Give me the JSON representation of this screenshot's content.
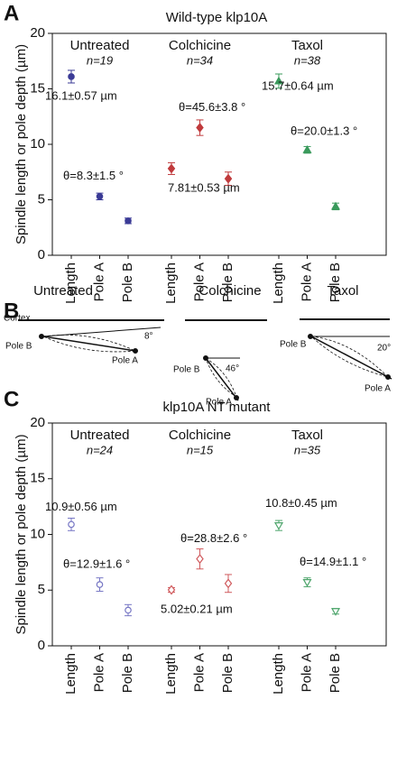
{
  "panels": [
    "A",
    "B",
    "C"
  ],
  "chart_data": [
    {
      "type": "errorbar",
      "title": "Wild-type klp10A",
      "ylabel": "Spindle length or pole depth (µm)",
      "categories": [
        "Length",
        "Pole A",
        "Pole B"
      ],
      "ylim": [
        0,
        20
      ],
      "yticks": [
        0,
        5,
        10,
        15,
        20
      ],
      "series": [
        {
          "name": "Untreated",
          "n": "n=19",
          "color": "#3b3b96",
          "marker": "circle",
          "filled": true,
          "values": [
            16.1,
            5.3,
            3.1
          ],
          "errors": [
            0.57,
            0.3,
            0.25
          ],
          "length_label": "16.1±0.57 µm",
          "angle_label": "θ=8.3±1.5 °"
        },
        {
          "name": "Colchicine",
          "n": "n=34",
          "color": "#c03a3c",
          "marker": "diamond",
          "filled": true,
          "values": [
            7.81,
            11.5,
            6.9
          ],
          "errors": [
            0.53,
            0.7,
            0.6
          ],
          "length_label": "7.81±0.53 µm",
          "angle_label": "θ=45.6±3.8 °"
        },
        {
          "name": "Taxol",
          "n": "n=38",
          "color": "#3a9a5c",
          "marker": "triangle",
          "filled": true,
          "values": [
            15.7,
            9.5,
            4.4
          ],
          "errors": [
            0.64,
            0.3,
            0.3
          ],
          "length_label": "15.7±0.64 µm",
          "angle_label": "θ=20.0±1.3 °"
        }
      ]
    },
    {
      "type": "errorbar",
      "title": "klp10A NT mutant",
      "ylabel": "Spindle length or pole depth (µm)",
      "categories": [
        "Length",
        "Pole A",
        "Pole B"
      ],
      "ylim": [
        0,
        20
      ],
      "yticks": [
        0,
        5,
        10,
        15,
        20
      ],
      "series": [
        {
          "name": "Untreated",
          "n": "n=24",
          "color": "#7676c4",
          "marker": "circle",
          "filled": false,
          "values": [
            10.9,
            5.5,
            3.2
          ],
          "errors": [
            0.56,
            0.6,
            0.5
          ],
          "length_label": "10.9±0.56 µm",
          "angle_label": "θ=12.9±1.6 °"
        },
        {
          "name": "Colchicine",
          "n": "n=15",
          "color": "#d0595c",
          "marker": "diamond",
          "filled": false,
          "values": [
            5.02,
            7.8,
            5.6
          ],
          "errors": [
            0.21,
            0.9,
            0.8
          ],
          "length_label": "5.02±0.21 µm",
          "angle_label": "θ=28.8±2.6 °"
        },
        {
          "name": "Taxol",
          "n": "n=35",
          "color": "#4ea56c",
          "marker": "triangle-down",
          "filled": false,
          "values": [
            10.8,
            5.7,
            3.1
          ],
          "errors": [
            0.45,
            0.4,
            0.25
          ],
          "length_label": "10.8±0.45 µm",
          "angle_label": "θ=14.9±1.1 °"
        }
      ]
    }
  ],
  "diagram": {
    "titles": [
      "Untreated",
      "Colchicine",
      "Taxol"
    ],
    "cortex": "Cortex",
    "pole_a": "Pole A",
    "pole_b": "Pole B",
    "angles": [
      "8°",
      "46°",
      "20°"
    ]
  }
}
